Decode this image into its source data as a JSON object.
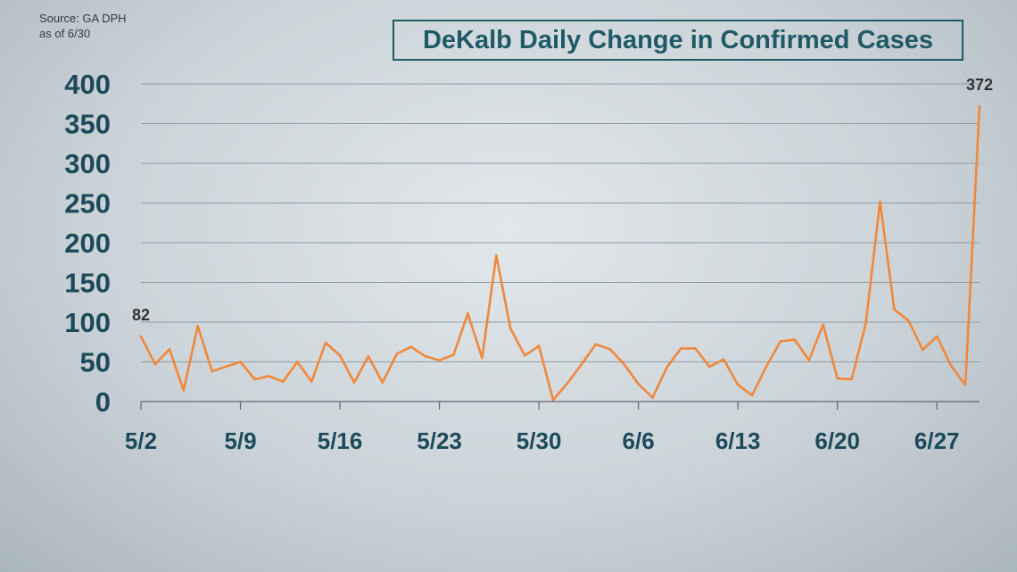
{
  "source": {
    "line1": "Source: GA DPH",
    "line2": "as of 6/30"
  },
  "chart_data": {
    "type": "line",
    "title": "DeKalb Daily Change in Confirmed Cases",
    "xlabel": "",
    "ylabel": "",
    "ylim": [
      0,
      400
    ],
    "yticks": [
      0,
      50,
      100,
      150,
      200,
      250,
      300,
      350,
      400
    ],
    "grid": true,
    "x_start": "5/2",
    "xtick_labels": [
      "5/2",
      "5/9",
      "5/16",
      "5/23",
      "5/30",
      "6/6",
      "6/13",
      "6/20",
      "6/27"
    ],
    "line_color": "#f0883c",
    "series": [
      {
        "x": [
          "5/2",
          "5/3",
          "5/4",
          "5/5",
          "5/6",
          "5/7",
          "5/8",
          "5/9",
          "5/10",
          "5/11",
          "5/12",
          "5/13",
          "5/14",
          "5/15",
          "5/16",
          "5/17",
          "5/18",
          "5/19",
          "5/20",
          "5/21",
          "5/22",
          "5/23",
          "5/24",
          "5/25",
          "5/26",
          "5/27",
          "5/28",
          "5/29",
          "5/30",
          "5/31",
          "6/1",
          "6/2",
          "6/3",
          "6/4",
          "6/5",
          "6/6",
          "6/7",
          "6/8",
          "6/9",
          "6/10",
          "6/11",
          "6/12",
          "6/13",
          "6/14",
          "6/15",
          "6/16",
          "6/17",
          "6/18",
          "6/19",
          "6/20",
          "6/21",
          "6/22",
          "6/23",
          "6/24",
          "6/25",
          "6/26",
          "6/27",
          "6/28",
          "6/29",
          "6/30"
        ],
        "values": [
          82,
          47,
          66,
          14,
          95,
          38,
          44,
          50,
          28,
          32,
          25,
          50,
          25,
          74,
          58,
          24,
          57,
          24,
          60,
          69,
          57,
          52,
          59,
          111,
          55,
          184,
          92,
          58,
          70,
          2,
          23,
          47,
          72,
          66,
          47,
          22,
          5,
          43,
          67,
          67,
          44,
          53,
          21,
          8,
          44,
          76,
          78,
          52,
          97,
          29,
          28,
          98,
          252,
          116,
          102,
          65,
          82,
          45,
          21,
          372
        ]
      }
    ],
    "annotations": [
      {
        "text": "82",
        "x": "5/2",
        "y": 82
      },
      {
        "text": "372",
        "x": "6/30",
        "y": 372
      }
    ]
  }
}
